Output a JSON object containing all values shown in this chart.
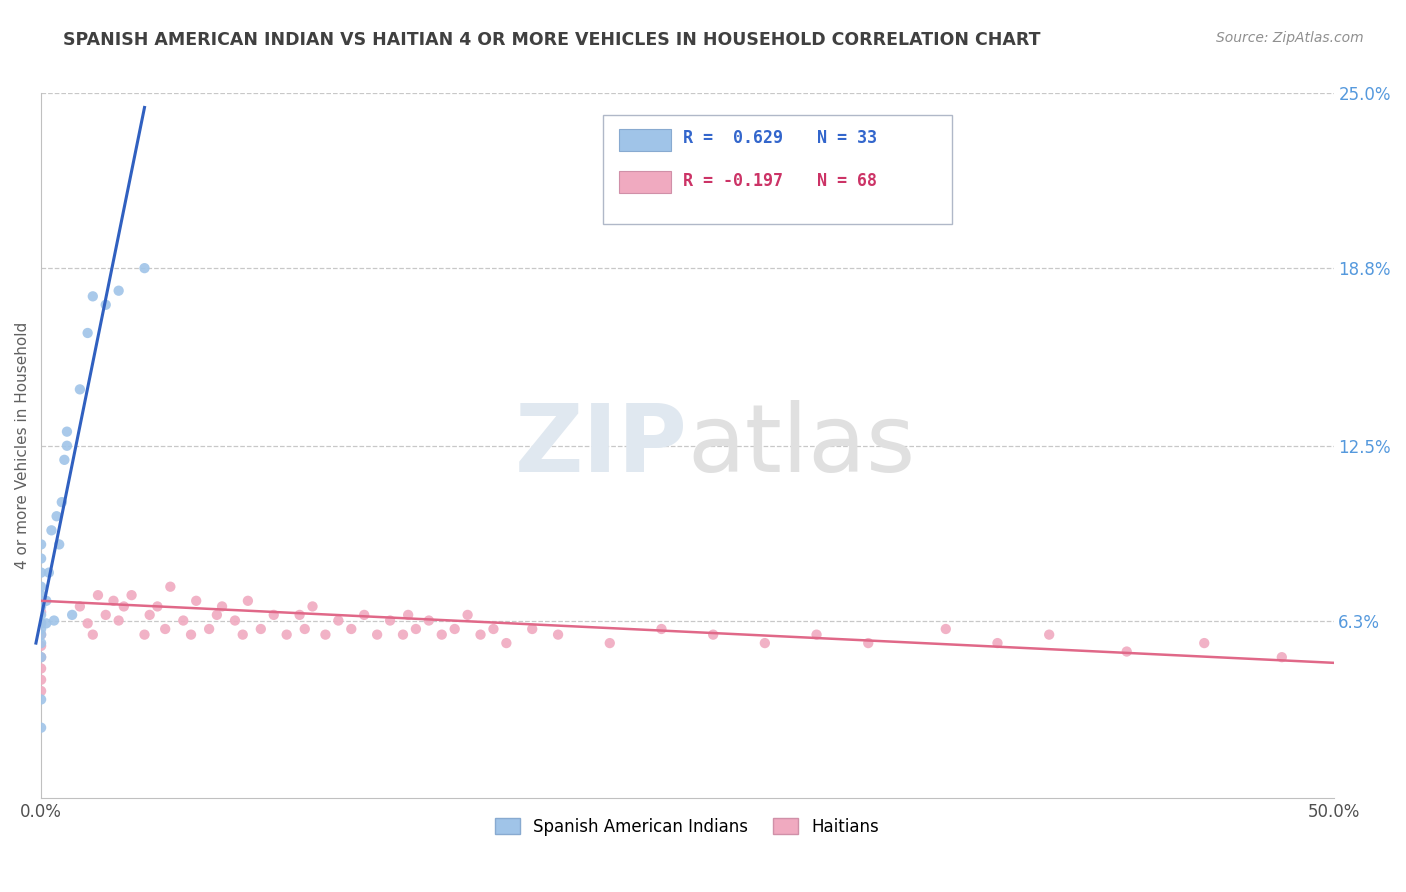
{
  "title": "SPANISH AMERICAN INDIAN VS HAITIAN 4 OR MORE VEHICLES IN HOUSEHOLD CORRELATION CHART",
  "source": "Source: ZipAtlas.com",
  "ylabel": "4 or more Vehicles in Household",
  "watermark_zip": "ZIP",
  "watermark_atlas": "atlas",
  "xlim": [
    0.0,
    0.5
  ],
  "ylim": [
    0.0,
    0.25
  ],
  "ytick_labels": [
    "6.3%",
    "12.5%",
    "18.8%",
    "25.0%"
  ],
  "ytick_values": [
    0.063,
    0.125,
    0.188,
    0.25
  ],
  "legend_entries": [
    {
      "r_label": "R =  0.629",
      "n_label": "N = 33",
      "color": "#a8c8f0"
    },
    {
      "r_label": "R = -0.197",
      "n_label": "N = 68",
      "color": "#f0a8c0"
    }
  ],
  "legend_labels": [
    "Spanish American Indians",
    "Haitians"
  ],
  "blue_color": "#a0c4e8",
  "pink_color": "#f0aac0",
  "blue_line_color": "#3060c0",
  "pink_line_color": "#e06888",
  "background_color": "#ffffff",
  "grid_color": "#c8c8c8",
  "title_color": "#404040",
  "source_color": "#909090",
  "blue_scatter_x": [
    0.0,
    0.0,
    0.0,
    0.0,
    0.0,
    0.0,
    0.0,
    0.0,
    0.0,
    0.0,
    0.0,
    0.0,
    0.0,
    0.0,
    0.0,
    0.002,
    0.002,
    0.003,
    0.004,
    0.005,
    0.006,
    0.007,
    0.008,
    0.009,
    0.01,
    0.01,
    0.012,
    0.015,
    0.018,
    0.02,
    0.025,
    0.03,
    0.04
  ],
  "blue_scatter_y": [
    0.025,
    0.035,
    0.05,
    0.055,
    0.058,
    0.06,
    0.062,
    0.065,
    0.068,
    0.07,
    0.072,
    0.075,
    0.08,
    0.085,
    0.09,
    0.062,
    0.07,
    0.08,
    0.095,
    0.063,
    0.1,
    0.09,
    0.105,
    0.12,
    0.125,
    0.13,
    0.065,
    0.145,
    0.165,
    0.178,
    0.175,
    0.18,
    0.188
  ],
  "pink_scatter_x": [
    0.0,
    0.0,
    0.0,
    0.0,
    0.0,
    0.0,
    0.0,
    0.0,
    0.0,
    0.015,
    0.018,
    0.02,
    0.022,
    0.025,
    0.028,
    0.03,
    0.032,
    0.035,
    0.04,
    0.042,
    0.045,
    0.048,
    0.05,
    0.055,
    0.058,
    0.06,
    0.065,
    0.068,
    0.07,
    0.075,
    0.078,
    0.08,
    0.085,
    0.09,
    0.095,
    0.1,
    0.102,
    0.105,
    0.11,
    0.115,
    0.12,
    0.125,
    0.13,
    0.135,
    0.14,
    0.142,
    0.145,
    0.15,
    0.155,
    0.16,
    0.165,
    0.17,
    0.175,
    0.18,
    0.19,
    0.2,
    0.22,
    0.24,
    0.26,
    0.28,
    0.3,
    0.32,
    0.35,
    0.37,
    0.39,
    0.42,
    0.45,
    0.48
  ],
  "pink_scatter_y": [
    0.038,
    0.042,
    0.046,
    0.05,
    0.054,
    0.058,
    0.062,
    0.066,
    0.07,
    0.068,
    0.062,
    0.058,
    0.072,
    0.065,
    0.07,
    0.063,
    0.068,
    0.072,
    0.058,
    0.065,
    0.068,
    0.06,
    0.075,
    0.063,
    0.058,
    0.07,
    0.06,
    0.065,
    0.068,
    0.063,
    0.058,
    0.07,
    0.06,
    0.065,
    0.058,
    0.065,
    0.06,
    0.068,
    0.058,
    0.063,
    0.06,
    0.065,
    0.058,
    0.063,
    0.058,
    0.065,
    0.06,
    0.063,
    0.058,
    0.06,
    0.065,
    0.058,
    0.06,
    0.055,
    0.06,
    0.058,
    0.055,
    0.06,
    0.058,
    0.055,
    0.058,
    0.055,
    0.06,
    0.055,
    0.058,
    0.052,
    0.055,
    0.05
  ],
  "blue_line_x": [
    -0.002,
    0.04
  ],
  "blue_line_y": [
    0.055,
    0.245
  ],
  "pink_line_x": [
    0.0,
    0.5
  ],
  "pink_line_y": [
    0.07,
    0.048
  ]
}
